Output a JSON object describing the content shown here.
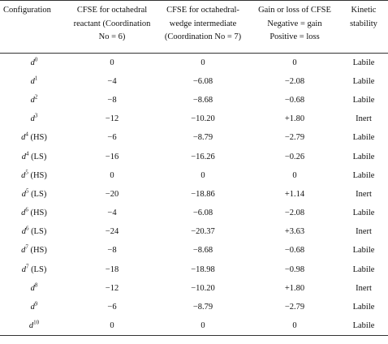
{
  "headers": {
    "configuration": "Configuration",
    "cfse_reactant": "CFSE for octahedral reactant (Coordination No = 6)",
    "cfse_intermediate": "CFSE for octahedral-wedge intermediate (Coordination No = 7)",
    "gain_loss_line1": "Gain or loss of CFSE",
    "gain_loss_line2": "Negative = gain",
    "gain_loss_line3": "Positive = loss",
    "kinetic": "Kinetic stability"
  },
  "rows": [
    {
      "letter": "d",
      "sup": "0",
      "spin": "",
      "reactant": "0",
      "intermediate": "0",
      "change": "0",
      "stability": "Labile"
    },
    {
      "letter": "d",
      "sup": "1",
      "spin": "",
      "reactant": "−4",
      "intermediate": "−6.08",
      "change": "−2.08",
      "stability": "Labile"
    },
    {
      "letter": "d",
      "sup": "2",
      "spin": "",
      "reactant": "−8",
      "intermediate": "−8.68",
      "change": "−0.68",
      "stability": "Labile"
    },
    {
      "letter": "d",
      "sup": "3",
      "spin": "",
      "reactant": "−12",
      "intermediate": "−10.20",
      "change": "+1.80",
      "stability": "Inert"
    },
    {
      "letter": "d",
      "sup": "4",
      "spin": " (HS)",
      "reactant": "−6",
      "intermediate": "−8.79",
      "change": "−2.79",
      "stability": "Labile"
    },
    {
      "letter": "d",
      "sup": "4",
      "spin": " (LS)",
      "reactant": "−16",
      "intermediate": "−16.26",
      "change": "−0.26",
      "stability": "Labile"
    },
    {
      "letter": "d",
      "sup": "5",
      "spin": " (HS)",
      "reactant": "0",
      "intermediate": "0",
      "change": "0",
      "stability": "Labile"
    },
    {
      "letter": "d",
      "sup": "5",
      "spin": " (LS)",
      "reactant": "−20",
      "intermediate": "−18.86",
      "change": "+1.14",
      "stability": "Inert"
    },
    {
      "letter": "d",
      "sup": "6",
      "spin": " (HS)",
      "reactant": "−4",
      "intermediate": "−6.08",
      "change": "−2.08",
      "stability": "Labile"
    },
    {
      "letter": "d",
      "sup": "6",
      "spin": " (LS)",
      "reactant": "−24",
      "intermediate": "−20.37",
      "change": "+3.63",
      "stability": "Inert"
    },
    {
      "letter": "d",
      "sup": "7",
      "spin": " (HS)",
      "reactant": "−8",
      "intermediate": "−8.68",
      "change": "−0.68",
      "stability": "Labile"
    },
    {
      "letter": "d",
      "sup": "7",
      "spin": " (LS)",
      "reactant": "−18",
      "intermediate": "−18.98",
      "change": "−0.98",
      "stability": "Labile"
    },
    {
      "letter": "d",
      "sup": "8",
      "spin": "",
      "reactant": "−12",
      "intermediate": "−10.20",
      "change": "+1.80",
      "stability": "Inert"
    },
    {
      "letter": "d",
      "sup": "9",
      "spin": "",
      "reactant": "−6",
      "intermediate": "−8.79",
      "change": "−2.79",
      "stability": "Labile"
    },
    {
      "letter": "d",
      "sup": "10",
      "spin": "",
      "reactant": "0",
      "intermediate": "0",
      "change": "0",
      "stability": "Labile"
    }
  ]
}
